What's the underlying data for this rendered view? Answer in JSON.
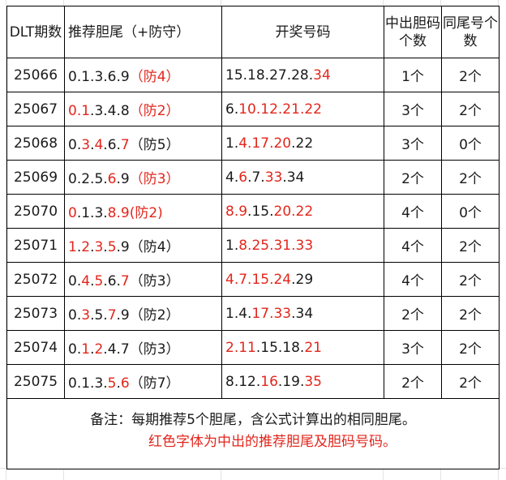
{
  "table": {
    "headers": {
      "issue": "DLT期数",
      "recommend": "推荐胆尾（+防守）",
      "draw": "开奖号码",
      "hit_count": "中出胆码个数",
      "same_tail": "同尾号个数"
    },
    "rows": [
      {
        "issue": "25066",
        "recommend": [
          {
            "t": "0.1.3.6.9",
            "red": false
          },
          {
            "t": "（防4）",
            "red": true
          }
        ],
        "draw": [
          {
            "t": "15.18.27.28.",
            "red": false
          },
          {
            "t": "34",
            "red": true
          }
        ],
        "hit_count": "1个",
        "same_tail": "2个"
      },
      {
        "issue": "25067",
        "recommend": [
          {
            "t": "0.1",
            "red": true
          },
          {
            "t": ".3.4.8",
            "red": false
          },
          {
            "t": "（防2）",
            "red": true
          }
        ],
        "draw": [
          {
            "t": "6.",
            "red": false
          },
          {
            "t": "10.12.21.22",
            "red": true
          }
        ],
        "hit_count": "3个",
        "same_tail": "2个"
      },
      {
        "issue": "25068",
        "recommend": [
          {
            "t": "0.",
            "red": false
          },
          {
            "t": "3",
            "red": true
          },
          {
            "t": ".",
            "red": false
          },
          {
            "t": "4",
            "red": true
          },
          {
            "t": ".6.",
            "red": false
          },
          {
            "t": "7",
            "red": true
          },
          {
            "t": "（防5）",
            "red": false
          }
        ],
        "draw": [
          {
            "t": "1.",
            "red": false
          },
          {
            "t": "4.17.20",
            "red": true
          },
          {
            "t": ".22",
            "red": false
          }
        ],
        "hit_count": "3个",
        "same_tail": "0个"
      },
      {
        "issue": "25069",
        "recommend": [
          {
            "t": "0.2.5.",
            "red": false
          },
          {
            "t": "6",
            "red": true
          },
          {
            "t": ".9",
            "red": false
          },
          {
            "t": "（防3）",
            "red": true
          }
        ],
        "draw": [
          {
            "t": "4.",
            "red": false
          },
          {
            "t": "6",
            "red": true
          },
          {
            "t": ".7.",
            "red": false
          },
          {
            "t": "33",
            "red": true
          },
          {
            "t": ".34",
            "red": false
          }
        ],
        "hit_count": "2个",
        "same_tail": "2个"
      },
      {
        "issue": "25070",
        "recommend": [
          {
            "t": "0",
            "red": true
          },
          {
            "t": ".1.3.",
            "red": false
          },
          {
            "t": "8.9",
            "red": true
          },
          {
            "t": "(防2)",
            "red": true
          }
        ],
        "draw": [
          {
            "t": "8.9",
            "red": true
          },
          {
            "t": ".15.",
            "red": false
          },
          {
            "t": "20.22",
            "red": true
          }
        ],
        "hit_count": "4个",
        "same_tail": "0个"
      },
      {
        "issue": "25071",
        "recommend": [
          {
            "t": "1",
            "red": true
          },
          {
            "t": ".",
            "red": false
          },
          {
            "t": "2",
            "red": true
          },
          {
            "t": ".",
            "red": false
          },
          {
            "t": "3",
            "red": true
          },
          {
            "t": ".",
            "red": false
          },
          {
            "t": "5",
            "red": true
          },
          {
            "t": ".9（防4）",
            "red": false
          }
        ],
        "draw": [
          {
            "t": "1.",
            "red": false
          },
          {
            "t": "8.25.31.33",
            "red": true
          }
        ],
        "hit_count": "4个",
        "same_tail": "2个"
      },
      {
        "issue": "25072",
        "recommend": [
          {
            "t": "0.",
            "red": false
          },
          {
            "t": "4",
            "red": true
          },
          {
            "t": ".",
            "red": false
          },
          {
            "t": "5",
            "red": true
          },
          {
            "t": ".6.",
            "red": false
          },
          {
            "t": "7",
            "red": true
          },
          {
            "t": "（防3）",
            "red": false
          }
        ],
        "draw": [
          {
            "t": "4.7.15.24",
            "red": true
          },
          {
            "t": ".29",
            "red": false
          }
        ],
        "hit_count": "4个",
        "same_tail": "2个"
      },
      {
        "issue": "25073",
        "recommend": [
          {
            "t": "0.",
            "red": false
          },
          {
            "t": "3",
            "red": true
          },
          {
            "t": ".5.",
            "red": false
          },
          {
            "t": "7",
            "red": true
          },
          {
            "t": ".9（防2）",
            "red": false
          }
        ],
        "draw": [
          {
            "t": "1.4.",
            "red": false
          },
          {
            "t": "17.33",
            "red": true
          },
          {
            "t": ".34",
            "red": false
          }
        ],
        "hit_count": "2个",
        "same_tail": "2个"
      },
      {
        "issue": "25074",
        "recommend": [
          {
            "t": "0.",
            "red": false
          },
          {
            "t": "1",
            "red": true
          },
          {
            "t": ".",
            "red": false
          },
          {
            "t": "2",
            "red": true
          },
          {
            "t": ".4.7（防3）",
            "red": false
          }
        ],
        "draw": [
          {
            "t": "2.11",
            "red": true
          },
          {
            "t": ".15.18.",
            "red": false
          },
          {
            "t": "21",
            "red": true
          }
        ],
        "hit_count": "3个",
        "same_tail": "2个"
      },
      {
        "issue": "25075",
        "recommend": [
          {
            "t": "0.1.3.",
            "red": false
          },
          {
            "t": "5",
            "red": true
          },
          {
            "t": ".",
            "red": false
          },
          {
            "t": "6",
            "red": true
          },
          {
            "t": "（防7）",
            "red": false
          }
        ],
        "draw": [
          {
            "t": "8.12.",
            "red": false
          },
          {
            "t": "16",
            "red": true
          },
          {
            "t": ".19.",
            "red": false
          },
          {
            "t": "35",
            "red": true
          }
        ],
        "hit_count": "2个",
        "same_tail": "2个"
      }
    ]
  },
  "note": {
    "line1": "备注：每期推荐5个胆尾，含公式计算出的相同胆尾。",
    "line2": "红色字体为中出的推荐胆尾及胆码号码。"
  },
  "colors": {
    "highlight": "#e2261c",
    "text": "#1a1a1a",
    "border": "#000000",
    "gridline": "#e3e3e3"
  }
}
